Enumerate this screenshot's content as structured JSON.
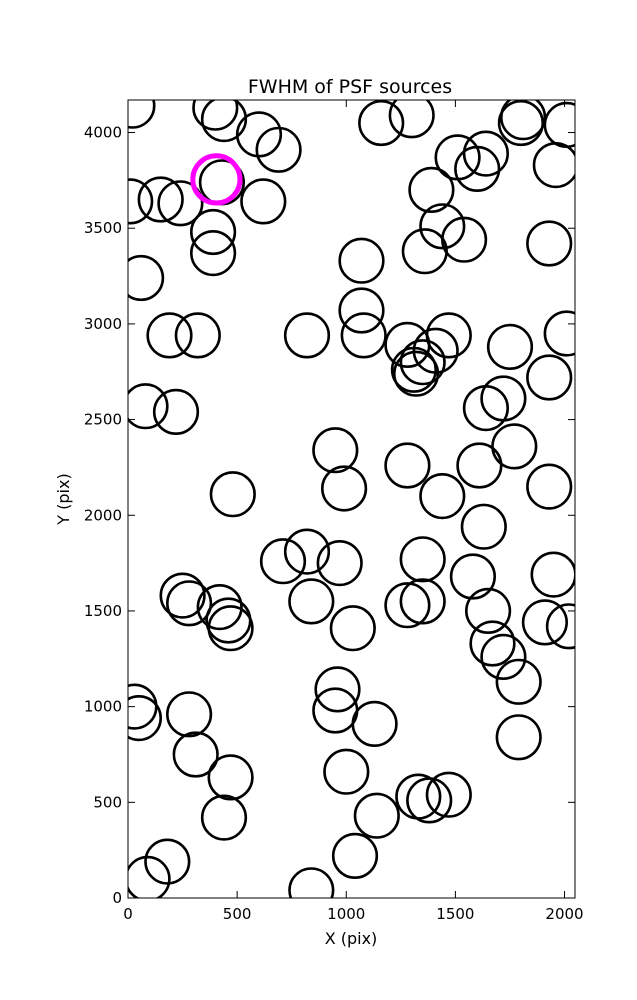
{
  "chart_data": {
    "type": "scatter",
    "title": "FWHM of PSF sources",
    "xlabel": "X (pix)",
    "ylabel": "Y (pix)",
    "xlim": [
      0,
      2048
    ],
    "ylim": [
      0,
      4170
    ],
    "xticks": [
      0,
      500,
      1000,
      1500,
      2000
    ],
    "yticks": [
      0,
      500,
      1000,
      1500,
      2000,
      2500,
      3000,
      3500,
      4000
    ],
    "grid": false,
    "legend": "none",
    "marker": "open-circle",
    "marker_color": "#000000",
    "highlight_color": "#ff00ff",
    "marker_radius_data_x": 100,
    "highlight": {
      "x": 405,
      "y": 3755
    },
    "points": [
      {
        "x": 20,
        "y": 4140
      },
      {
        "x": 400,
        "y": 4130
      },
      {
        "x": 440,
        "y": 4070
      },
      {
        "x": 600,
        "y": 3990
      },
      {
        "x": 690,
        "y": 3910
      },
      {
        "x": 1160,
        "y": 4050
      },
      {
        "x": 1300,
        "y": 4090
      },
      {
        "x": 1800,
        "y": 4050
      },
      {
        "x": 1810,
        "y": 4080
      },
      {
        "x": 2010,
        "y": 4040
      },
      {
        "x": 1510,
        "y": 3870
      },
      {
        "x": 1640,
        "y": 3890
      },
      {
        "x": 1600,
        "y": 3810
      },
      {
        "x": 1960,
        "y": 3830
      },
      {
        "x": 10,
        "y": 3640
      },
      {
        "x": 150,
        "y": 3650
      },
      {
        "x": 240,
        "y": 3630
      },
      {
        "x": 430,
        "y": 3740
      },
      {
        "x": 620,
        "y": 3640
      },
      {
        "x": 1390,
        "y": 3700
      },
      {
        "x": 1440,
        "y": 3510
      },
      {
        "x": 1540,
        "y": 3440
      },
      {
        "x": 1360,
        "y": 3380
      },
      {
        "x": 1930,
        "y": 3420
      },
      {
        "x": 390,
        "y": 3480
      },
      {
        "x": 390,
        "y": 3370
      },
      {
        "x": 60,
        "y": 3240
      },
      {
        "x": 1070,
        "y": 3330
      },
      {
        "x": 1070,
        "y": 3070
      },
      {
        "x": 1080,
        "y": 2940
      },
      {
        "x": 190,
        "y": 2940
      },
      {
        "x": 320,
        "y": 2940
      },
      {
        "x": 820,
        "y": 2940
      },
      {
        "x": 1280,
        "y": 2890
      },
      {
        "x": 1470,
        "y": 2940
      },
      {
        "x": 1750,
        "y": 2880
      },
      {
        "x": 2010,
        "y": 2950
      },
      {
        "x": 1410,
        "y": 2860
      },
      {
        "x": 1350,
        "y": 2800
      },
      {
        "x": 1310,
        "y": 2760
      },
      {
        "x": 1320,
        "y": 2740
      },
      {
        "x": 1930,
        "y": 2720
      },
      {
        "x": 80,
        "y": 2570
      },
      {
        "x": 220,
        "y": 2540
      },
      {
        "x": 1640,
        "y": 2560
      },
      {
        "x": 1720,
        "y": 2610
      },
      {
        "x": 1770,
        "y": 2360
      },
      {
        "x": 950,
        "y": 2340
      },
      {
        "x": 990,
        "y": 2140
      },
      {
        "x": 1280,
        "y": 2260
      },
      {
        "x": 1610,
        "y": 2260
      },
      {
        "x": 1930,
        "y": 2150
      },
      {
        "x": 480,
        "y": 2110
      },
      {
        "x": 1440,
        "y": 2100
      },
      {
        "x": 1630,
        "y": 1940
      },
      {
        "x": 710,
        "y": 1760
      },
      {
        "x": 820,
        "y": 1810
      },
      {
        "x": 970,
        "y": 1750
      },
      {
        "x": 1350,
        "y": 1770
      },
      {
        "x": 1580,
        "y": 1680
      },
      {
        "x": 1950,
        "y": 1690
      },
      {
        "x": 250,
        "y": 1580
      },
      {
        "x": 280,
        "y": 1540
      },
      {
        "x": 420,
        "y": 1520
      },
      {
        "x": 460,
        "y": 1450
      },
      {
        "x": 470,
        "y": 1410
      },
      {
        "x": 840,
        "y": 1550
      },
      {
        "x": 1280,
        "y": 1530
      },
      {
        "x": 1350,
        "y": 1550
      },
      {
        "x": 1650,
        "y": 1500
      },
      {
        "x": 1030,
        "y": 1410
      },
      {
        "x": 1910,
        "y": 1440
      },
      {
        "x": 2020,
        "y": 1420
      },
      {
        "x": 1670,
        "y": 1330
      },
      {
        "x": 1720,
        "y": 1260
      },
      {
        "x": 1790,
        "y": 1130
      },
      {
        "x": 30,
        "y": 1000
      },
      {
        "x": 50,
        "y": 940
      },
      {
        "x": 280,
        "y": 960
      },
      {
        "x": 960,
        "y": 1090
      },
      {
        "x": 950,
        "y": 980
      },
      {
        "x": 1130,
        "y": 910
      },
      {
        "x": 310,
        "y": 750
      },
      {
        "x": 470,
        "y": 630
      },
      {
        "x": 1000,
        "y": 660
      },
      {
        "x": 1790,
        "y": 840
      },
      {
        "x": 440,
        "y": 420
      },
      {
        "x": 1140,
        "y": 430
      },
      {
        "x": 1330,
        "y": 530
      },
      {
        "x": 1380,
        "y": 510
      },
      {
        "x": 1470,
        "y": 540
      },
      {
        "x": 1040,
        "y": 220
      },
      {
        "x": 180,
        "y": 190
      },
      {
        "x": 90,
        "y": 100
      },
      {
        "x": 840,
        "y": 40
      }
    ]
  }
}
